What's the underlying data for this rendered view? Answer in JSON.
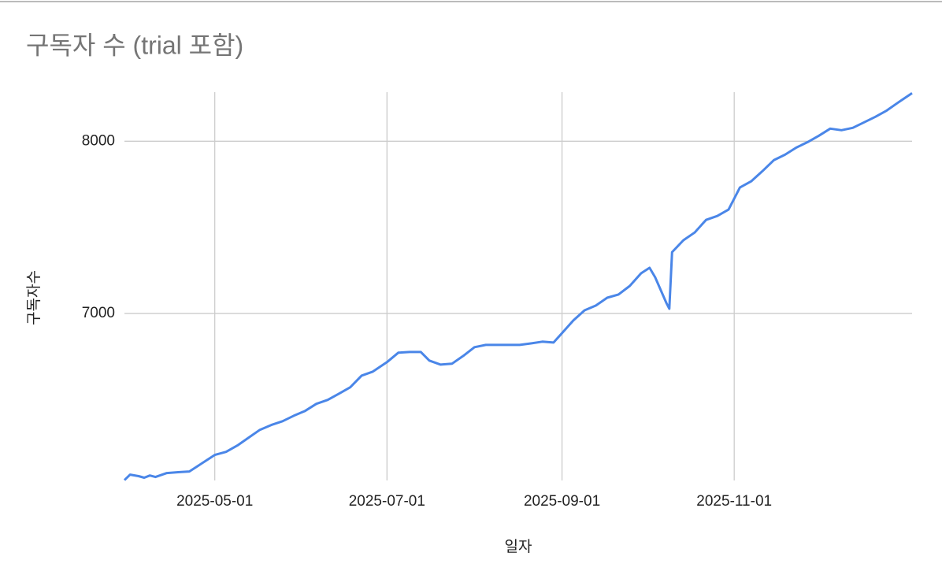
{
  "chart_data": {
    "type": "line",
    "title": "구독자 수 (trial 포함)",
    "x_label": "일자",
    "y_label": "구독자수",
    "x": [
      "2025-03-30",
      "2025-04-01",
      "2025-04-04",
      "2025-04-06",
      "2025-04-08",
      "2025-04-10",
      "2025-04-14",
      "2025-04-18",
      "2025-04-22",
      "2025-04-25",
      "2025-04-28",
      "2025-05-01",
      "2025-05-05",
      "2025-05-09",
      "2025-05-13",
      "2025-05-17",
      "2025-05-21",
      "2025-05-25",
      "2025-05-29",
      "2025-06-02",
      "2025-06-06",
      "2025-06-10",
      "2025-06-14",
      "2025-06-18",
      "2025-06-22",
      "2025-06-26",
      "2025-07-01",
      "2025-07-05",
      "2025-07-09",
      "2025-07-13",
      "2025-07-16",
      "2025-07-20",
      "2025-07-24",
      "2025-07-28",
      "2025-08-01",
      "2025-08-05",
      "2025-08-09",
      "2025-08-13",
      "2025-08-17",
      "2025-08-21",
      "2025-08-25",
      "2025-08-29",
      "2025-09-01",
      "2025-09-05",
      "2025-09-09",
      "2025-09-13",
      "2025-09-17",
      "2025-09-21",
      "2025-09-25",
      "2025-09-29",
      "2025-10-02",
      "2025-10-04",
      "2025-10-08",
      "2025-10-09",
      "2025-10-10",
      "2025-10-14",
      "2025-10-18",
      "2025-10-22",
      "2025-10-26",
      "2025-10-30",
      "2025-11-03",
      "2025-11-07",
      "2025-11-11",
      "2025-11-15",
      "2025-11-19",
      "2025-11-23",
      "2025-11-27",
      "2025-12-01",
      "2025-12-05",
      "2025-12-09",
      "2025-12-13",
      "2025-12-17",
      "2025-12-21",
      "2025-12-25",
      "2025-12-29",
      "2026-01-03"
    ],
    "series": [
      {
        "name": "구독자수",
        "color": "#4a86e8",
        "values": [
          6032,
          6064,
          6055,
          6046,
          6059,
          6050,
          6073,
          6078,
          6082,
          6114,
          6146,
          6178,
          6196,
          6233,
          6279,
          6324,
          6352,
          6374,
          6406,
          6434,
          6475,
          6498,
          6534,
          6571,
          6639,
          6662,
          6717,
          6772,
          6776,
          6776,
          6726,
          6703,
          6708,
          6753,
          6804,
          6817,
          6817,
          6817,
          6817,
          6826,
          6836,
          6831,
          6886,
          6959,
          7018,
          7046,
          7091,
          7110,
          7160,
          7233,
          7265,
          7210,
          7059,
          7027,
          7356,
          7425,
          7470,
          7543,
          7566,
          7603,
          7731,
          7767,
          7826,
          7890,
          7922,
          7963,
          7995,
          8032,
          8073,
          8064,
          8078,
          8110,
          8142,
          8178,
          8224,
          8279
        ]
      }
    ],
    "xlim": [
      "2025-03-30",
      "2026-01-03"
    ],
    "xticks": [
      "2025-05-01",
      "2025-07-01",
      "2025-09-01",
      "2025-11-01"
    ],
    "ylim": [
      6030,
      8285
    ],
    "yticks": [
      7000,
      8000
    ],
    "grid": true
  }
}
